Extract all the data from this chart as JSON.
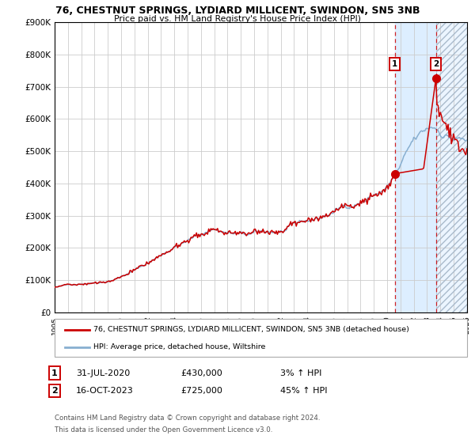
{
  "title": "76, CHESTNUT SPRINGS, LYDIARD MILLICENT, SWINDON, SN5 3NB",
  "subtitle": "Price paid vs. HM Land Registry's House Price Index (HPI)",
  "ylim": [
    0,
    900000
  ],
  "yticks": [
    0,
    100000,
    200000,
    300000,
    400000,
    500000,
    600000,
    700000,
    800000,
    900000
  ],
  "ytick_labels": [
    "£0",
    "£100K",
    "£200K",
    "£300K",
    "£400K",
    "£500K",
    "£600K",
    "£700K",
    "£800K",
    "£900K"
  ],
  "line1_color": "#cc0000",
  "line2_color": "#88afd0",
  "m1_idx": 307,
  "m1_val": 430000,
  "m2_idx": 344,
  "m2_val": 725000,
  "legend_line1": "76, CHESTNUT SPRINGS, LYDIARD MILLICENT, SWINDON, SN5 3NB (detached house)",
  "legend_line2": "HPI: Average price, detached house, Wiltshire",
  "row1_num": "1",
  "row1_date": "31-JUL-2020",
  "row1_price": "£430,000",
  "row1_hpi": "3% ↑ HPI",
  "row2_num": "2",
  "row2_date": "16-OCT-2023",
  "row2_price": "£725,000",
  "row2_hpi": "45% ↑ HPI",
  "footnote1": "Contains HM Land Registry data © Crown copyright and database right 2024.",
  "footnote2": "This data is licensed under the Open Government Licence v3.0.",
  "bg_color": "#ffffff",
  "grid_color": "#cccccc",
  "shade_color": "#ddeeff",
  "start_year": 1995,
  "n_months": 373
}
